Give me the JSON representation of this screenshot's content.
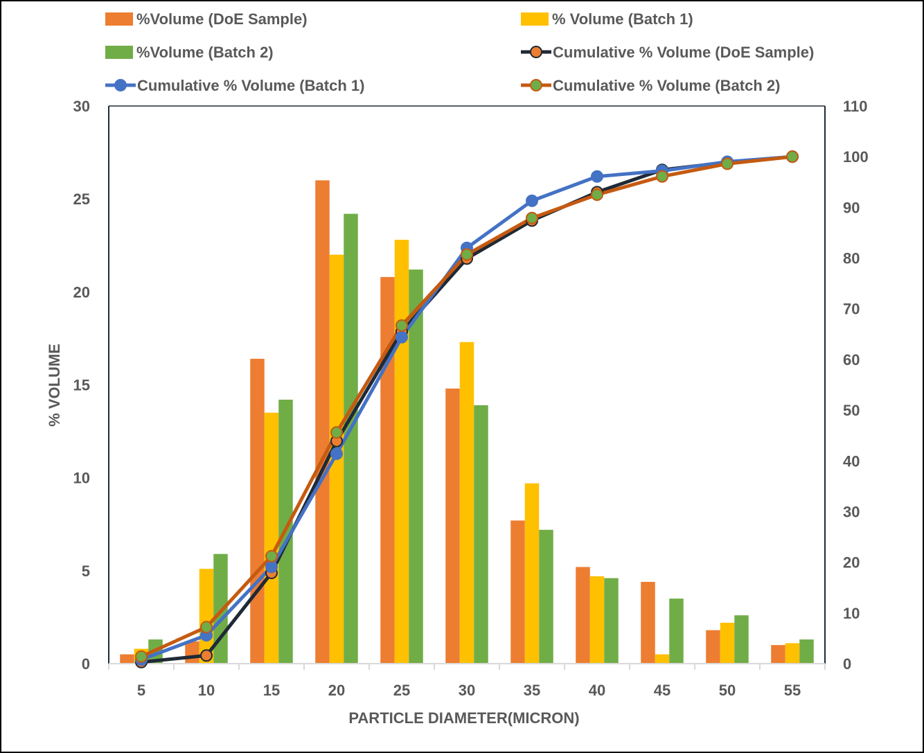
{
  "chart_data": {
    "type": "bar",
    "title": "",
    "xlabel": "PARTICLE DIAMETER(MICRON)",
    "ylabel": "% VOLUME",
    "y2label": "",
    "categories": [
      "5",
      "10",
      "15",
      "20",
      "25",
      "30",
      "35",
      "40",
      "45",
      "50",
      "55"
    ],
    "ylim": [
      0,
      30
    ],
    "yticks": [
      0,
      5,
      10,
      15,
      20,
      25,
      30
    ],
    "y2lim": [
      0,
      110
    ],
    "y2ticks": [
      0,
      10,
      20,
      30,
      40,
      50,
      60,
      70,
      80,
      90,
      100,
      110
    ],
    "grid": false,
    "legend_position": "top",
    "bar_series": [
      {
        "name": "%Volume (DoE Sample)",
        "color": "#ED7D31",
        "axis": "left",
        "values": [
          0.5,
          1.2,
          16.4,
          26.0,
          20.8,
          14.8,
          7.7,
          5.2,
          4.4,
          1.8,
          1.0
        ]
      },
      {
        "name": "% Volume (Batch 1)",
        "color": "#FFC000",
        "axis": "left",
        "values": [
          0.8,
          5.1,
          13.5,
          22.0,
          22.8,
          17.3,
          9.7,
          4.7,
          0.5,
          2.2,
          1.1
        ]
      },
      {
        "name": "%Volume (Batch 2)",
        "color": "#70AD47",
        "axis": "left",
        "values": [
          1.3,
          5.9,
          14.2,
          24.2,
          21.2,
          13.9,
          7.2,
          4.6,
          3.5,
          2.6,
          1.3
        ]
      }
    ],
    "line_series": [
      {
        "name": "Cumulative % Volume (DoE Sample)",
        "line_color": "#1F2A36",
        "marker_fill": "#ED7D31",
        "marker_edge": "#1F2A36",
        "axis": "right",
        "values": [
          0.3,
          1.6,
          17.9,
          43.9,
          65.5,
          79.9,
          87.4,
          93.0,
          97.4,
          98.9,
          100
        ]
      },
      {
        "name": "Cumulative % Volume (Batch 1)",
        "line_color": "#4472C4",
        "marker_fill": "#4472C4",
        "marker_edge": "#4472C4",
        "axis": "right",
        "values": [
          0.8,
          5.6,
          19.1,
          41.4,
          64.4,
          82.0,
          91.3,
          96.1,
          97.2,
          99.0,
          100
        ]
      },
      {
        "name": "Cumulative % Volume (Batch 2)",
        "line_color": "#C55A11",
        "marker_fill": "#70AD47",
        "marker_edge": "#C55A11",
        "axis": "right",
        "values": [
          1.4,
          7.2,
          21.2,
          45.6,
          66.7,
          80.7,
          87.9,
          92.5,
          96.1,
          98.6,
          100
        ]
      }
    ],
    "legend": [
      {
        "label": "%Volume (DoE Sample)",
        "kind": "bar",
        "series": 0
      },
      {
        "label": "% Volume (Batch 1)",
        "kind": "bar",
        "series": 1
      },
      {
        "label": "%Volume (Batch 2)",
        "kind": "bar",
        "series": 2
      },
      {
        "label": "Cumulative % Volume (DoE Sample)",
        "kind": "line",
        "series": 0
      },
      {
        "label": "Cumulative % Volume (Batch 1)",
        "kind": "line",
        "series": 1
      },
      {
        "label": "Cumulative % Volume (Batch 2)",
        "kind": "line",
        "series": 2
      }
    ]
  }
}
